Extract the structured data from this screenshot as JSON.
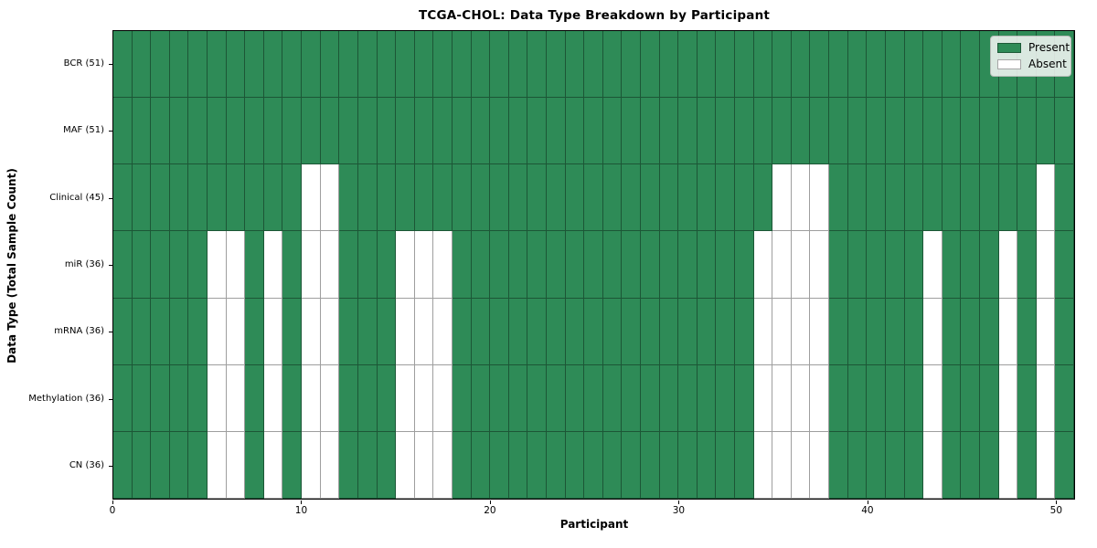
{
  "chart_data": {
    "type": "heatmap",
    "title": "TCGA-CHOL: Data Type Breakdown by Participant",
    "xlabel": "Participant",
    "ylabel": "Data Type (Total Sample Count)",
    "n_participants": 51,
    "x_ticks": [
      0,
      10,
      20,
      30,
      40,
      50
    ],
    "x_range": [
      0,
      51
    ],
    "grid": "cell-borders",
    "legend_position": "upper-right",
    "legend": [
      {
        "label": "Present",
        "color": "#2E8B57"
      },
      {
        "label": "Absent",
        "color": "#FFFFFF"
      }
    ],
    "colors": {
      "present": "#2E8B57",
      "absent": "#FFFFFF",
      "cell_edge": "rgba(0,0,0,0.38)"
    },
    "rows": [
      {
        "label": "BCR (51)",
        "data_type": "BCR",
        "present_count": 51,
        "absent_participants": []
      },
      {
        "label": "MAF (51)",
        "data_type": "MAF",
        "present_count": 51,
        "absent_participants": []
      },
      {
        "label": "Clinical (45)",
        "data_type": "Clinical",
        "present_count": 45,
        "absent_participants": [
          10,
          11,
          35,
          36,
          37,
          49
        ]
      },
      {
        "label": "miR (36)",
        "data_type": "miR",
        "present_count": 36,
        "absent_participants": [
          5,
          6,
          8,
          10,
          11,
          15,
          16,
          17,
          34,
          35,
          36,
          37,
          43,
          47,
          49
        ]
      },
      {
        "label": "mRNA (36)",
        "data_type": "mRNA",
        "present_count": 36,
        "absent_participants": [
          5,
          6,
          8,
          10,
          11,
          15,
          16,
          17,
          34,
          35,
          36,
          37,
          43,
          47,
          49
        ]
      },
      {
        "label": "Methylation (36)",
        "data_type": "Methylation",
        "present_count": 36,
        "absent_participants": [
          5,
          6,
          8,
          10,
          11,
          15,
          16,
          17,
          34,
          35,
          36,
          37,
          43,
          47,
          49
        ]
      },
      {
        "label": "CN (36)",
        "data_type": "CN",
        "present_count": 36,
        "absent_participants": [
          5,
          6,
          8,
          10,
          11,
          15,
          16,
          17,
          34,
          35,
          36,
          37,
          43,
          47,
          49
        ]
      }
    ]
  }
}
